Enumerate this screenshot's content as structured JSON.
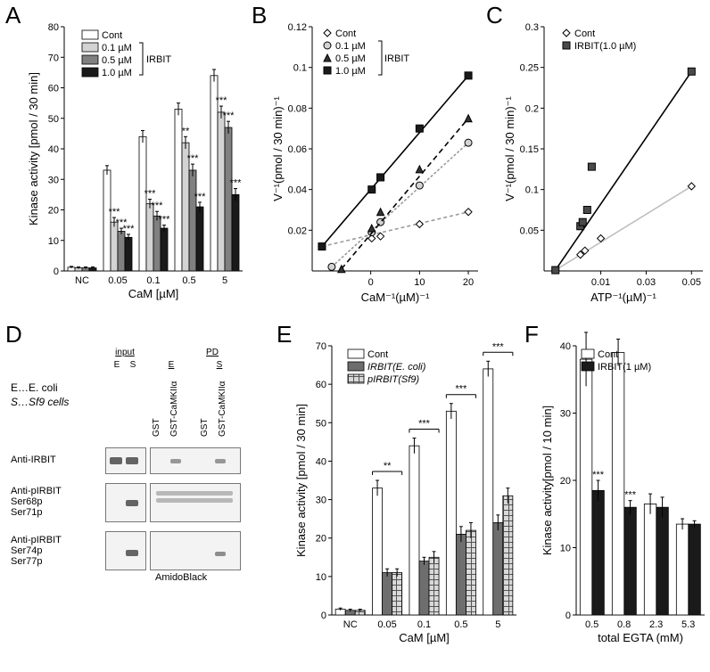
{
  "labels": {
    "A": "A",
    "B": "B",
    "C": "C",
    "D": "D",
    "E": "E",
    "F": "F"
  },
  "colors": {
    "cont": "#ffffff",
    "c01": "#d3d3d3",
    "c05": "#808080",
    "c10": "#1a1a1a",
    "barStroke": "#000000",
    "grid": "#000000",
    "lineCont": "#bfbfbf",
    "lineIrbit": "#000000"
  },
  "A": {
    "ylabel": "Kinase activity [pmol / 30 min]",
    "xlabel": "CaM [µM]",
    "ylim": [
      0,
      80
    ],
    "yticks": [
      0,
      10,
      20,
      30,
      40,
      50,
      60,
      70,
      80
    ],
    "categories": [
      "NC",
      "0.05",
      "0.1",
      "0.5",
      "5"
    ],
    "series": [
      {
        "name": "Cont",
        "color": "#ffffff",
        "values": [
          1.2,
          33,
          44,
          53,
          64
        ],
        "err": [
          0.3,
          1.5,
          2,
          2,
          2
        ],
        "sig": [
          "",
          "",
          "",
          "",
          ""
        ]
      },
      {
        "name": "0.1 µM",
        "color": "#d3d3d3",
        "values": [
          1,
          16,
          22,
          42,
          52
        ],
        "err": [
          0.3,
          1.5,
          1.5,
          2,
          2
        ],
        "sig": [
          "",
          "***",
          "***",
          "**",
          "***"
        ]
      },
      {
        "name": "0.5 µM",
        "color": "#808080",
        "values": [
          1,
          13,
          18,
          33,
          47
        ],
        "err": [
          0.3,
          1,
          1.5,
          2,
          2
        ],
        "sig": [
          "",
          "***",
          "***",
          "***",
          "***"
        ]
      },
      {
        "name": "1.0 µM",
        "color": "#1a1a1a",
        "values": [
          1,
          11,
          14,
          21,
          25
        ],
        "err": [
          0.3,
          1,
          1,
          1.5,
          2
        ],
        "sig": [
          "",
          "***",
          "***",
          "***",
          "***"
        ]
      }
    ],
    "legendTitle": "IRBIT"
  },
  "B": {
    "ylabel": "V⁻¹(pmol / 30 min)⁻¹",
    "xlabel": "CaM⁻¹(µM)⁻¹",
    "xlim": [
      -12,
      22
    ],
    "xticks": [
      0,
      10,
      20
    ],
    "ylim": [
      0,
      0.12
    ],
    "yticks": [
      0.02,
      0.04,
      0.06,
      0.08,
      0.1,
      0.12
    ],
    "series": [
      {
        "name": "Cont",
        "marker": "diamond",
        "fill": "#ffffff",
        "dash": "4 3",
        "color": "#9a9a9a",
        "points": [
          [
            -10,
            0.012
          ],
          [
            0.2,
            0.016
          ],
          [
            2,
            0.017
          ],
          [
            10,
            0.023
          ],
          [
            20,
            0.029
          ]
        ]
      },
      {
        "name": "0.1 µM",
        "marker": "circle",
        "fill": "#d3d3d3",
        "dash": "3 2",
        "color": "#9a9a9a",
        "points": [
          [
            -8,
            0.002
          ],
          [
            0.2,
            0.019
          ],
          [
            2,
            0.024
          ],
          [
            10,
            0.042
          ],
          [
            20,
            0.063
          ]
        ]
      },
      {
        "name": "0.5 µM",
        "marker": "triangle",
        "fill": "#333333",
        "dash": "6 4",
        "color": "#000000",
        "points": [
          [
            -6,
            0.001
          ],
          [
            0.2,
            0.021
          ],
          [
            2,
            0.029
          ],
          [
            10,
            0.05
          ],
          [
            20,
            0.075
          ]
        ]
      },
      {
        "name": "1.0 µM",
        "marker": "square",
        "fill": "#1a1a1a",
        "dash": "",
        "color": "#000000",
        "points": [
          [
            -10,
            0.012
          ],
          [
            0.2,
            0.04
          ],
          [
            2,
            0.046
          ],
          [
            10,
            0.07
          ],
          [
            20,
            0.096
          ]
        ]
      }
    ],
    "legendTitle": "IRBIT"
  },
  "C": {
    "ylabel": "V⁻¹(pmol / 30 min)⁻¹",
    "xlabel": "ATP⁻¹(µM)⁻¹",
    "xlim": [
      -0.015,
      0.055
    ],
    "xticks": [
      0.01,
      0.03,
      0.05
    ],
    "ylim": [
      0,
      0.3
    ],
    "yticks": [
      0.05,
      0.1,
      0.15,
      0.2,
      0.25,
      0.3
    ],
    "series": [
      {
        "name": "Cont",
        "marker": "diamond",
        "fill": "#ffffff",
        "dash": "",
        "color": "#bfbfbf",
        "points": [
          [
            -0.01,
            0.001
          ],
          [
            0.001,
            0.02
          ],
          [
            0.003,
            0.025
          ],
          [
            0.01,
            0.04
          ],
          [
            0.05,
            0.104
          ]
        ]
      },
      {
        "name": "IRBIT(1.0 µM)",
        "marker": "square",
        "fill": "#4a4a4a",
        "dash": "",
        "color": "#000000",
        "points": [
          [
            -0.01,
            0.001
          ],
          [
            0.001,
            0.055
          ],
          [
            0.002,
            0.06
          ],
          [
            0.004,
            0.075
          ],
          [
            0.006,
            0.128
          ],
          [
            0.05,
            0.245
          ]
        ]
      }
    ]
  },
  "D": {
    "headerInput": "input",
    "headerPD": "PD",
    "laneE": "E",
    "laneS": "S",
    "keyE": "E…E. coli",
    "keyS": "S…Sf9 cells",
    "pdLanes": [
      "GST",
      "GST-CaMKIIα",
      "GST",
      "GST-CaMKIIα"
    ],
    "rows": [
      "Anti-IRBIT",
      "Anti-pIRBIT\nSer68p\nSer71p",
      "Anti-pIRBIT\nSer74p\nSer77p"
    ],
    "amido": "AmidoBlack"
  },
  "E": {
    "ylabel": "Kinase activity [pmol / 30 min]",
    "xlabel": "CaM [µM]",
    "ylim": [
      0,
      70
    ],
    "yticks": [
      0,
      10,
      20,
      30,
      40,
      50,
      60,
      70
    ],
    "categories": [
      "NC",
      "0.05",
      "0.1",
      "0.5",
      "5"
    ],
    "series": [
      {
        "name": "Cont",
        "fill": "#ffffff",
        "pattern": "none",
        "values": [
          1.5,
          33,
          44,
          53,
          64
        ],
        "err": [
          0.3,
          2,
          2,
          2,
          2
        ],
        "sig": [
          "",
          "",
          "",
          "",
          ""
        ]
      },
      {
        "name": "IRBIT(E. coli)",
        "fill": "#6e6e6e",
        "pattern": "none",
        "values": [
          1.2,
          11,
          14,
          21,
          24
        ],
        "err": [
          0.3,
          1,
          1,
          2,
          2
        ],
        "sig": [
          "",
          "**",
          "***",
          "***",
          "***"
        ]
      },
      {
        "name": "pIRBIT(Sf9)",
        "fill": "#bdbdbd",
        "pattern": "hatch",
        "values": [
          1.2,
          11,
          15,
          22,
          31
        ],
        "err": [
          0.3,
          1,
          1.5,
          2,
          2
        ],
        "sig": [
          "",
          "",
          "",
          "",
          ""
        ]
      }
    ]
  },
  "F": {
    "ylabel": "Kinase activity[pmol / 10 min]",
    "xlabel": "total EGTA (mM)",
    "ylim": [
      0,
      40
    ],
    "yticks": [
      0,
      10,
      20,
      30,
      40
    ],
    "categories": [
      "0.5",
      "0.8",
      "2.3",
      "5.3"
    ],
    "series": [
      {
        "name": "Cont",
        "fill": "#ffffff",
        "values": [
          38,
          39,
          16.5,
          13.5
        ],
        "err": [
          4,
          2,
          1.5,
          0.8
        ],
        "sig": [
          "",
          "",
          "",
          ""
        ]
      },
      {
        "name": "IRBIT(1 µM)",
        "fill": "#1a1a1a",
        "values": [
          18.5,
          16,
          16,
          13.5
        ],
        "err": [
          1.5,
          1,
          1.5,
          0.5
        ],
        "sig": [
          "***",
          "***",
          "",
          ""
        ]
      }
    ]
  }
}
